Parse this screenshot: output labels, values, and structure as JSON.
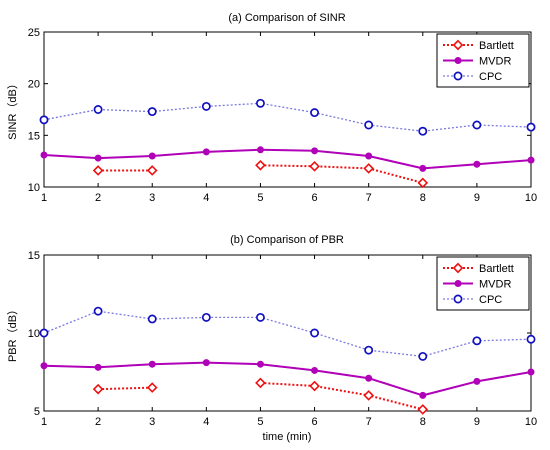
{
  "colors": {
    "bartlett": "#ee1111",
    "mvdr": "#b000b8",
    "cpc": "#7a7ae0",
    "cpc_marker": "#1010c0",
    "axis": "#000000"
  },
  "chart_data": [
    {
      "type": "line",
      "title": "(a) Comparison of SINR",
      "xlabel": "",
      "ylabel": "SINR（dB）",
      "x": [
        1,
        2,
        3,
        4,
        5,
        6,
        7,
        8,
        9,
        10
      ],
      "xlim": [
        1,
        10
      ],
      "ylim": [
        10,
        25
      ],
      "yticks": [
        10,
        15,
        20,
        25
      ],
      "xticks": [
        1,
        2,
        3,
        4,
        5,
        6,
        7,
        8,
        9,
        10
      ],
      "grid": false,
      "legend_position": "top-right",
      "series": [
        {
          "name": "Bartlett",
          "style": "dotted",
          "marker": "diamond",
          "values": [
            null,
            11.6,
            11.6,
            null,
            12.1,
            12.0,
            11.8,
            10.4,
            null,
            null
          ]
        },
        {
          "name": "MVDR",
          "style": "solid",
          "marker": "dot",
          "values": [
            13.1,
            12.8,
            13.0,
            13.4,
            13.6,
            13.5,
            13.0,
            11.8,
            12.2,
            12.6
          ]
        },
        {
          "name": "CPC",
          "style": "dotted",
          "marker": "circle",
          "values": [
            16.5,
            17.5,
            17.3,
            17.8,
            18.1,
            17.2,
            16.0,
            15.4,
            16.0,
            15.8
          ]
        }
      ]
    },
    {
      "type": "line",
      "title": "(b) Comparison of PBR",
      "xlabel": "time (min)",
      "ylabel": "PBR（dB）",
      "x": [
        1,
        2,
        3,
        4,
        5,
        6,
        7,
        8,
        9,
        10
      ],
      "xlim": [
        1,
        10
      ],
      "ylim": [
        5,
        15
      ],
      "yticks": [
        5,
        10,
        15
      ],
      "xticks": [
        1,
        2,
        3,
        4,
        5,
        6,
        7,
        8,
        9,
        10
      ],
      "grid": false,
      "legend_position": "top-right",
      "series": [
        {
          "name": "Bartlett",
          "style": "dotted",
          "marker": "diamond",
          "values": [
            null,
            6.4,
            6.5,
            null,
            6.8,
            6.6,
            6.0,
            5.1,
            null,
            null
          ]
        },
        {
          "name": "MVDR",
          "style": "solid",
          "marker": "dot",
          "values": [
            7.9,
            7.8,
            8.0,
            8.1,
            8.0,
            7.6,
            7.1,
            6.0,
            6.9,
            7.5
          ]
        },
        {
          "name": "CPC",
          "style": "dotted",
          "marker": "circle",
          "values": [
            10.0,
            11.4,
            10.9,
            11.0,
            11.0,
            10.0,
            8.9,
            8.5,
            9.5,
            9.6
          ]
        }
      ]
    }
  ]
}
